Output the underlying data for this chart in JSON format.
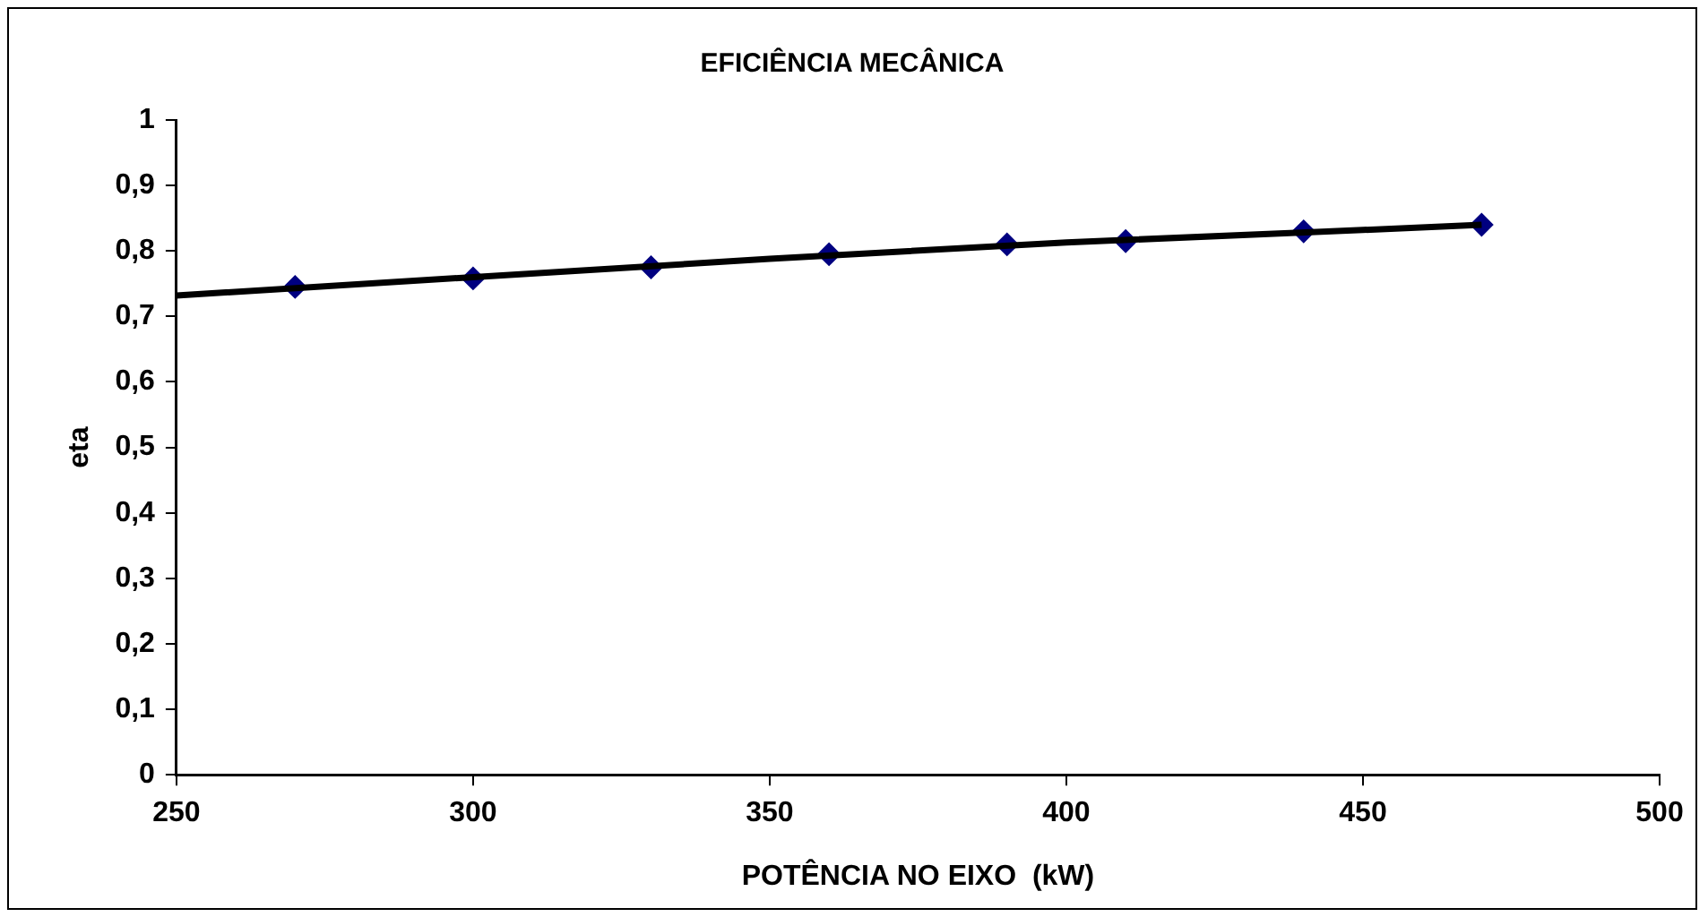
{
  "chart_data": {
    "type": "scatter",
    "title": "EFICIÊNCIA MECÂNICA",
    "xlabel": "POTÊNCIA NO EIXO  (kW)",
    "ylabel": "eta",
    "xlim": [
      250,
      500
    ],
    "xticks": [
      250,
      300,
      350,
      400,
      450,
      500
    ],
    "ylim": [
      0,
      1
    ],
    "yticks": [
      0,
      {
        "value": 0.1,
        "label": "0,1"
      },
      {
        "value": 0.2,
        "label": "0,2"
      },
      {
        "value": 0.3,
        "label": "0,3"
      },
      {
        "value": 0.4,
        "label": "0,4"
      },
      {
        "value": 0.5,
        "label": "0,5"
      },
      {
        "value": 0.6,
        "label": "0,6"
      },
      {
        "value": 0.7,
        "label": "0,7"
      },
      {
        "value": 0.8,
        "label": "0,8"
      },
      {
        "value": 0.9,
        "label": "0,9"
      },
      1
    ],
    "grid": false,
    "legend": false,
    "marker": "diamond",
    "series": [
      {
        "type": "line",
        "color": "#000000",
        "marker": "none",
        "x": [
          250,
          300,
          350,
          400,
          450,
          470
        ],
        "values": [
          0.732,
          0.76,
          0.788,
          0.813,
          0.832,
          0.84
        ]
      },
      {
        "color": "#000080",
        "x": [
          270,
          300,
          330,
          360,
          390,
          410,
          440,
          470
        ],
        "values": [
          0.745,
          0.758,
          0.775,
          0.795,
          0.81,
          0.815,
          0.83,
          0.84
        ]
      }
    ]
  }
}
